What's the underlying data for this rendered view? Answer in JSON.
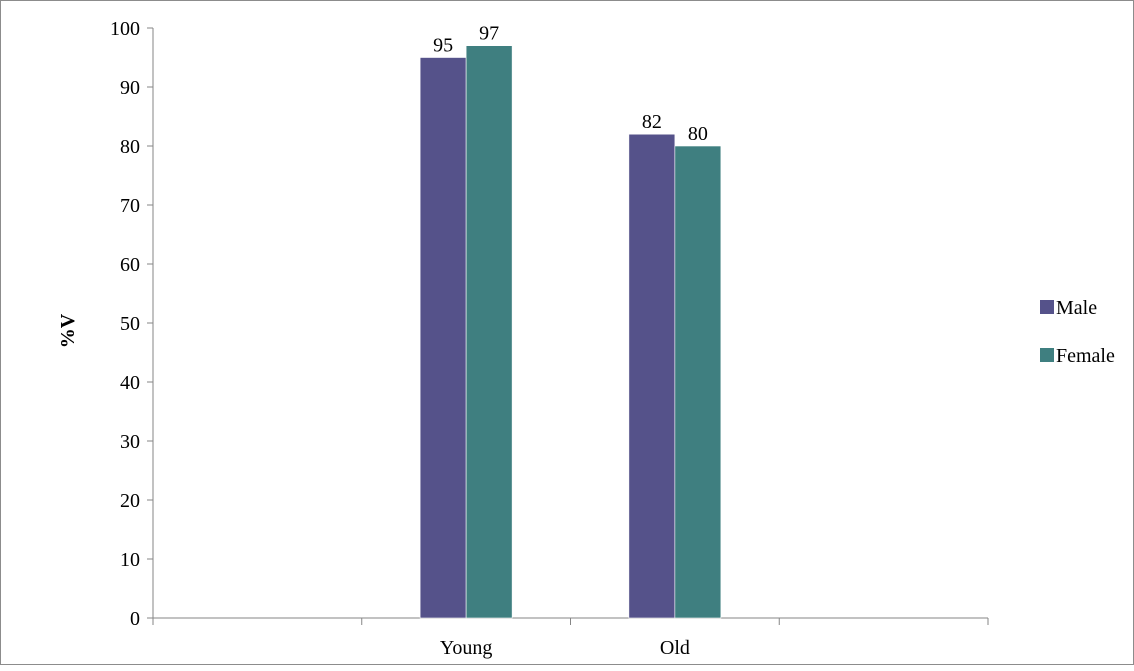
{
  "chart_data": {
    "type": "bar",
    "title": "",
    "xlabel": "",
    "ylabel": "%V",
    "ylim": [
      0,
      100
    ],
    "yticks": [
      0,
      10,
      20,
      30,
      40,
      50,
      60,
      70,
      80,
      90,
      100
    ],
    "categories": [
      "Young",
      "Old"
    ],
    "grid": false,
    "legend_position": "right",
    "series": [
      {
        "name": "Male",
        "color": "#55528a",
        "values": [
          95,
          82
        ]
      },
      {
        "name": "Female",
        "color": "#3f7f80",
        "values": [
          97,
          80
        ]
      }
    ]
  }
}
